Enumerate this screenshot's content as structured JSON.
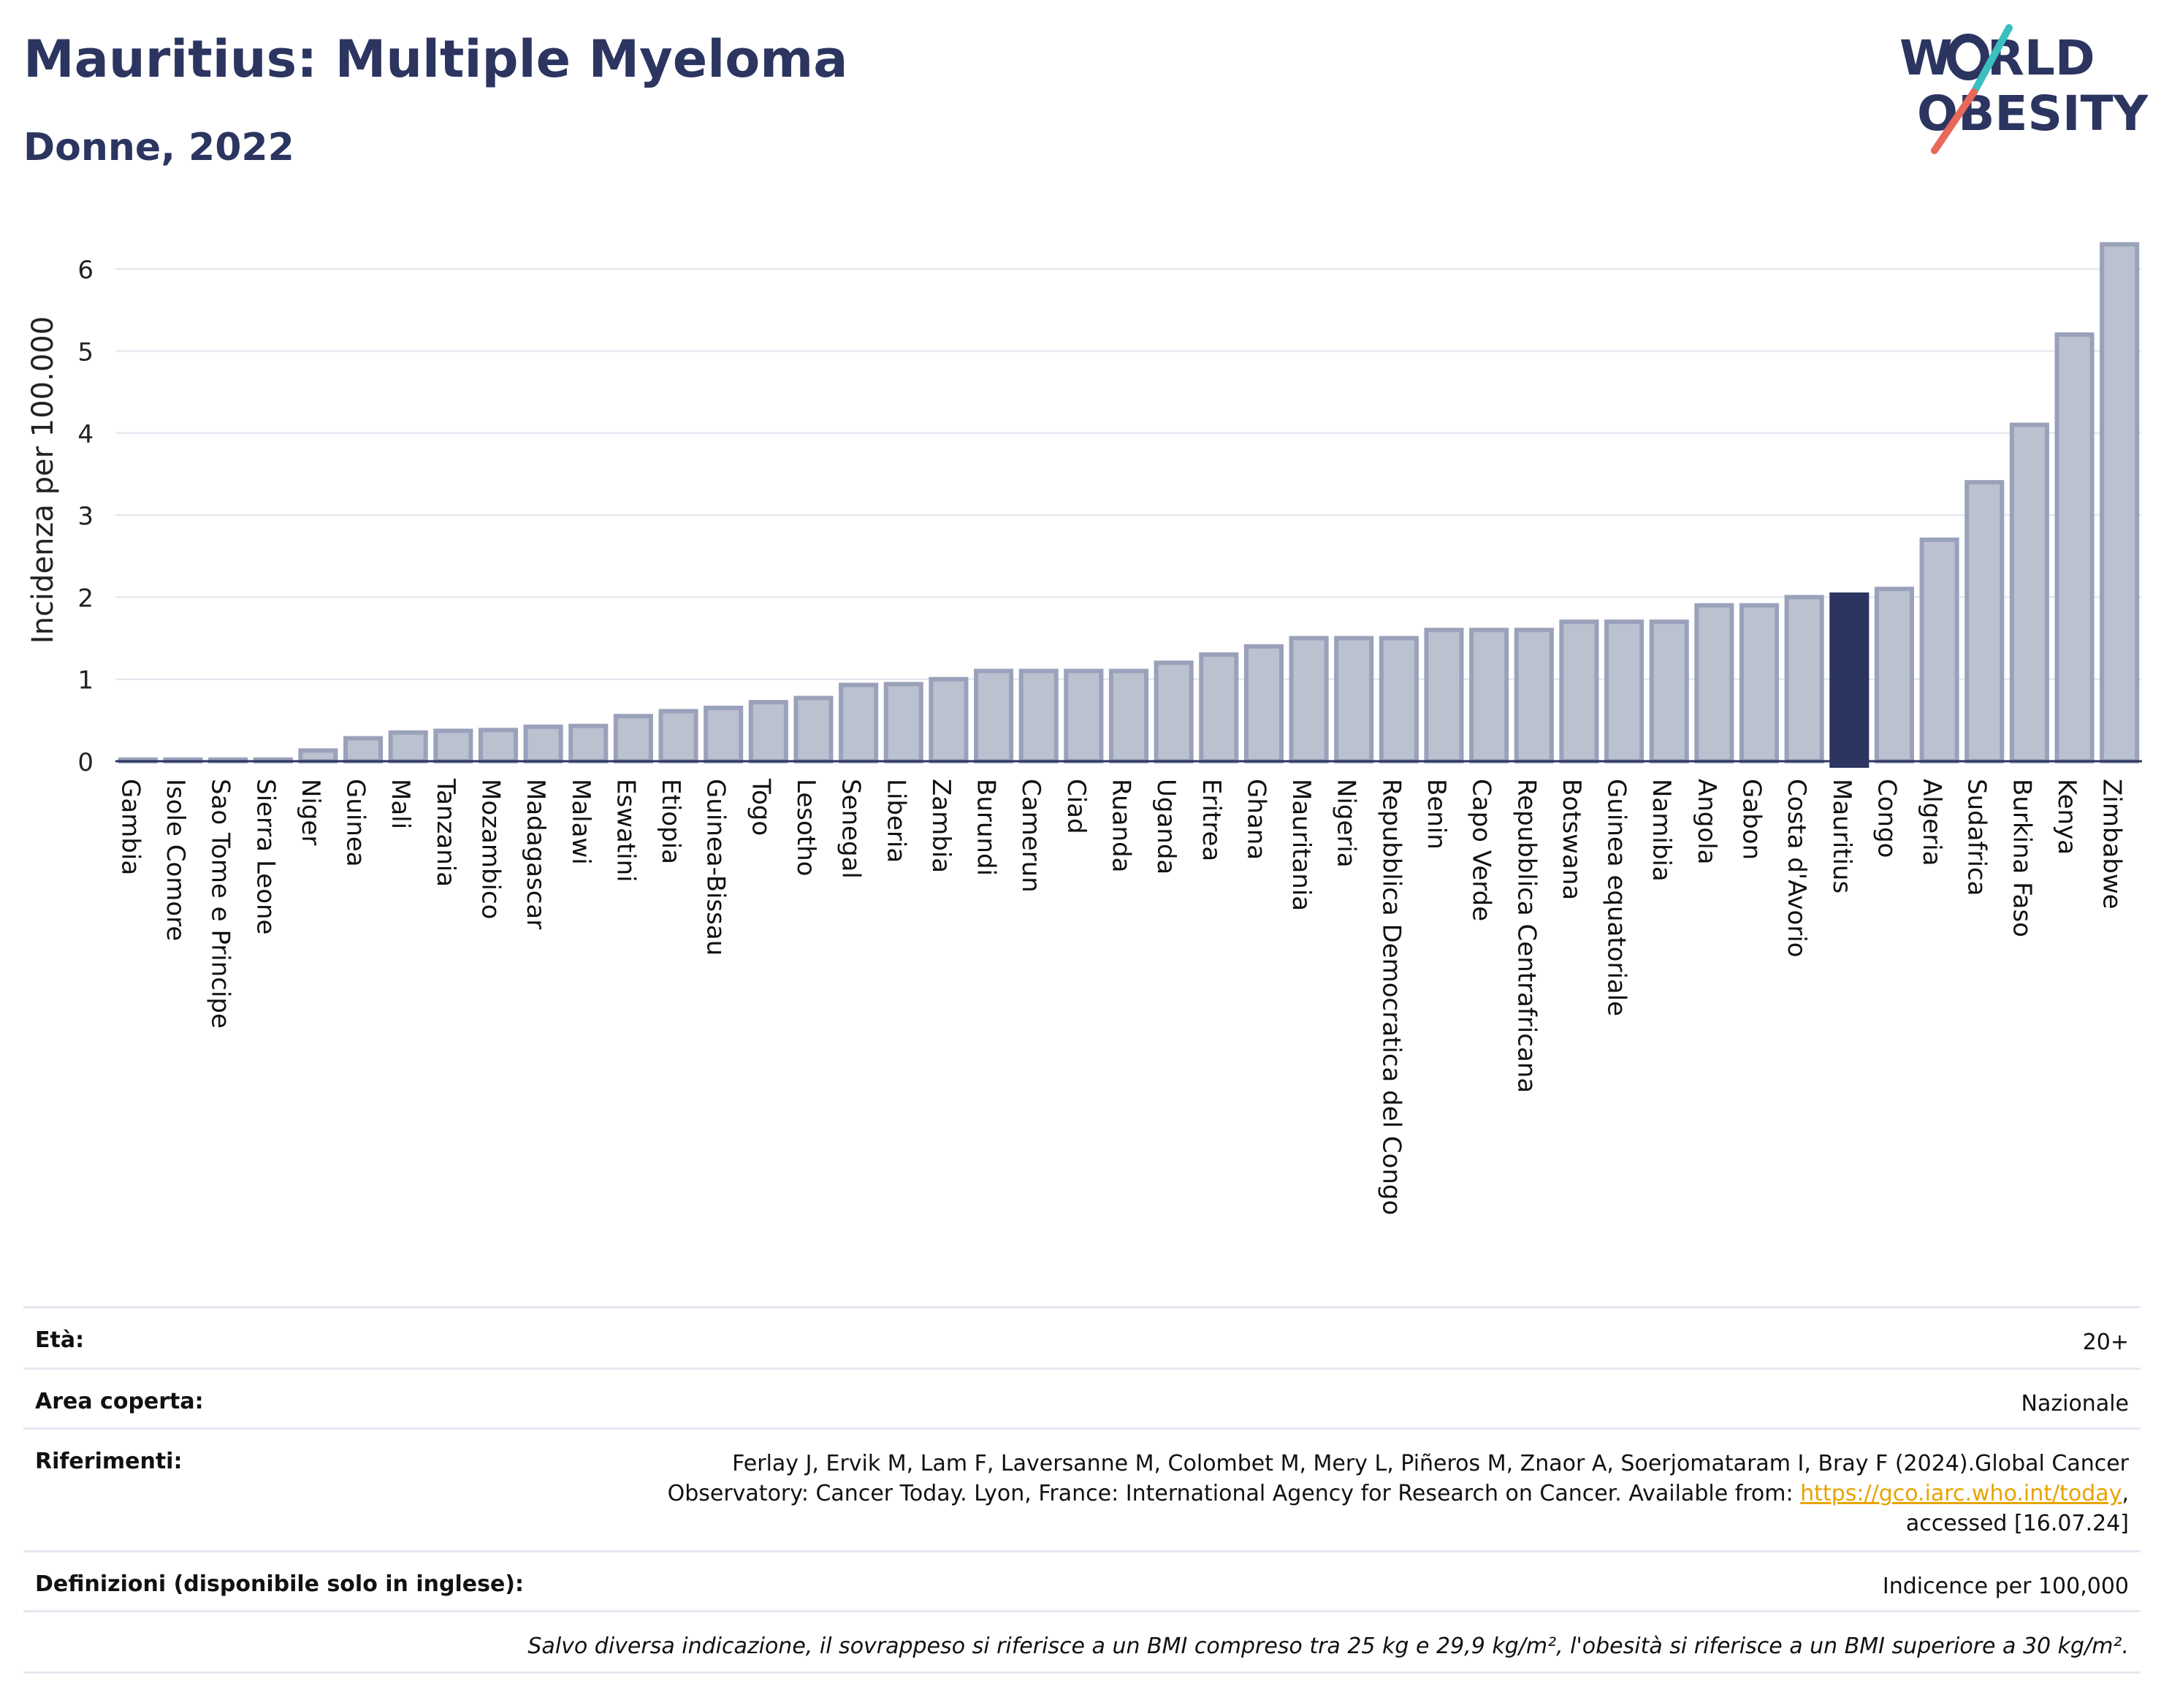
{
  "header": {
    "title": "Mauritius: Multiple Myeloma",
    "subtitle": "Donne, 2022"
  },
  "logo": {
    "line1": "W RLD",
    "line2": "OBESITY",
    "text_color": "#2b3560",
    "slash_colors": [
      "#3bbfbf",
      "#e8685a"
    ]
  },
  "colors": {
    "bar_fill": "#bcc1d0",
    "bar_stroke": "#9aa1ba",
    "highlight": "#2b3560",
    "grid": "#e6e9f1",
    "axis": "#2b3560"
  },
  "chart_data": {
    "type": "bar",
    "ylabel": "Incidenza per 100.000",
    "xlabel": "",
    "ylim": [
      -0.02,
      6.5
    ],
    "yticks": [
      0,
      1,
      2,
      3,
      4,
      5,
      6
    ],
    "grid": true,
    "highlight": "Mauritius",
    "categories": [
      "Gambia",
      "Isole Comore",
      "Sao Tome e Principe",
      "Sierra Leone",
      "Niger",
      "Guinea",
      "Mali",
      "Tanzania",
      "Mozambico",
      "Madagascar",
      "Malawi",
      "Eswatini",
      "Etiopia",
      "Guinea-Bissau",
      "Togo",
      "Lesotho",
      "Senegal",
      "Liberia",
      "Zambia",
      "Burundi",
      "Camerun",
      "Ciad",
      "Ruanda",
      "Uganda",
      "Eritrea",
      "Ghana",
      "Mauritania",
      "Nigeria",
      "Repubblica Democratica del Congo",
      "Benin",
      "Capo Verde",
      "Repubblica Centrafricana",
      "Botswana",
      "Guinea equatoriale",
      "Namibia",
      "Angola",
      "Gabon",
      "Costa d'Avorio",
      "Mauritius",
      "Congo",
      "Algeria",
      "Sudafrica",
      "Burkina Faso",
      "Kenya",
      "Zimbabwe"
    ],
    "values": [
      0.02,
      0.02,
      0.02,
      0.02,
      0.13,
      0.28,
      0.35,
      0.37,
      0.38,
      0.42,
      0.43,
      0.55,
      0.61,
      0.65,
      0.72,
      0.77,
      0.93,
      0.94,
      1.0,
      1.1,
      1.1,
      1.1,
      1.1,
      1.2,
      1.3,
      1.4,
      1.5,
      1.5,
      1.5,
      1.6,
      1.6,
      1.6,
      1.7,
      1.7,
      1.7,
      1.9,
      1.9,
      2.0,
      2.03,
      2.1,
      2.7,
      3.4,
      4.1,
      5.2,
      6.3
    ]
  },
  "meta": {
    "rows": [
      {
        "label": "Età:",
        "value": "20+"
      },
      {
        "label": "Area coperta:",
        "value": "Nazionale"
      },
      {
        "label": "Riferimenti:",
        "value_line1": "Ferlay J, Ervik M, Lam F, Laversanne M, Colombet M, Mery L, Piñeros M, Znaor A, Soerjomataram I, Bray F (2024).Global Cancer",
        "value_line2": "Observatory: Cancer Today. Lyon, France: International Agency for Research on Cancer. Available from: ",
        "link": "https://gco.iarc.who.int/today",
        "value_line2_end": ",",
        "value_line3": "accessed [16.07.24]"
      },
      {
        "label": "Definizioni (disponibile solo in inglese):",
        "value": "Indicence per 100,000"
      }
    ],
    "note": "Salvo diversa indicazione, il sovrappeso si riferisce a un BMI compreso tra 25 kg e 29,9 kg/m², l'obesità si riferisce a un BMI superiore a 30 kg/m²."
  }
}
